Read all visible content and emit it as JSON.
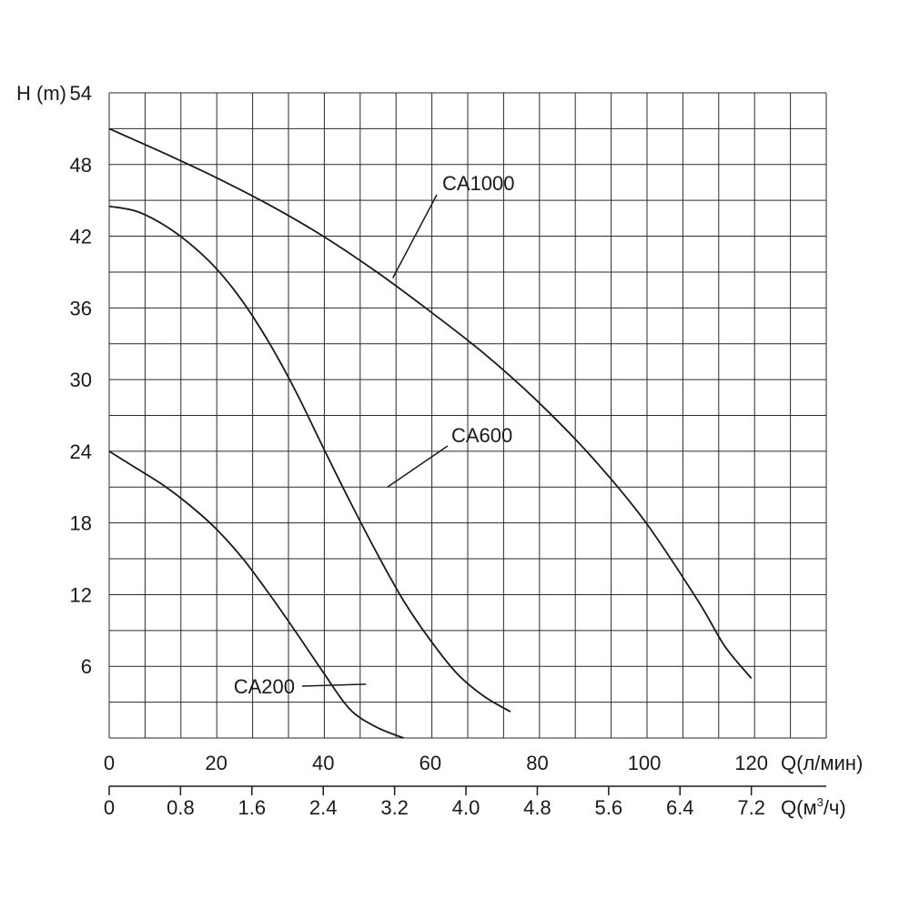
{
  "chart_data": {
    "type": "line",
    "ylabel": "H (m)",
    "y_ticks": [
      "6",
      "12",
      "18",
      "24",
      "30",
      "36",
      "42",
      "48",
      "54"
    ],
    "ylim": [
      0,
      54
    ],
    "y_ticks_values": [
      6,
      12,
      18,
      24,
      30,
      36,
      42,
      48,
      54
    ],
    "x_primary": {
      "label": "Q(л/мин)",
      "ticks": [
        "0",
        "20",
        "40",
        "60",
        "80",
        "100",
        "120"
      ],
      "tick_values": [
        0,
        20,
        40,
        60,
        80,
        100,
        120
      ],
      "range": [
        0,
        134
      ]
    },
    "x_secondary": {
      "label_base": "Q(м",
      "label_sup": "3",
      "label_tail": "/ч)",
      "ticks": [
        "0",
        "0.8",
        "1.6",
        "2.4",
        "3.2",
        "4.0",
        "4.8",
        "5.6",
        "6.4",
        "7.2"
      ],
      "tick_values": [
        0,
        0.8,
        1.6,
        2.4,
        3.2,
        4.0,
        4.8,
        5.6,
        6.4,
        7.2
      ]
    },
    "grid": true,
    "series": [
      {
        "name": "CA1000",
        "x": [
          0,
          10,
          20,
          30,
          40,
          50,
          60,
          70,
          80,
          90,
          100,
          110,
          115,
          120
        ],
        "y": [
          51.0,
          49.0,
          46.9,
          44.6,
          42.0,
          39.0,
          35.7,
          32.2,
          28.2,
          23.6,
          18.2,
          11.5,
          7.7,
          5.0
        ],
        "label_point": [
          53,
          38.5
        ]
      },
      {
        "name": "CA600",
        "x": [
          0,
          5,
          10,
          15,
          20,
          25,
          30,
          35,
          40,
          45,
          50,
          55,
          60,
          65,
          70,
          75
        ],
        "y": [
          44.5,
          44.1,
          43.0,
          41.4,
          39.3,
          36.5,
          33.0,
          28.9,
          24.3,
          19.8,
          15.5,
          11.5,
          8.2,
          5.4,
          3.5,
          2.2
        ],
        "label_point": [
          52,
          21
        ]
      },
      {
        "name": "CA200",
        "x": [
          0,
          5,
          10,
          15,
          20,
          25,
          30,
          35,
          40,
          45,
          50,
          55
        ],
        "y": [
          24.0,
          22.6,
          21.2,
          19.5,
          17.5,
          15.0,
          12.0,
          8.8,
          5.5,
          2.4,
          0.9,
          0.0
        ],
        "label_point": [
          48,
          4.5
        ]
      }
    ]
  }
}
